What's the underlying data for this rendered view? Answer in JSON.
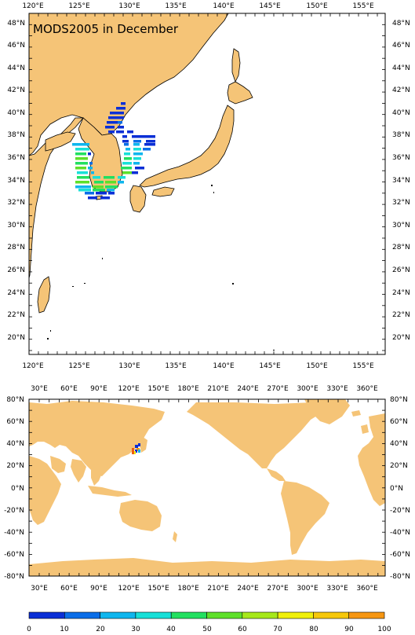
{
  "title": "MODS2005 in December",
  "regional_map": {
    "top_lon_labels": [
      "120°E",
      "125°E",
      "130°E",
      "135°E",
      "140°E",
      "145°E",
      "150°E",
      "155°E"
    ],
    "bottom_lon_labels": [
      "120°E",
      "125°E",
      "130°E",
      "135°E",
      "140°E",
      "145°E",
      "150°E",
      "155°E"
    ],
    "lat_labels": [
      "48°N",
      "46°N",
      "44°N",
      "42°N",
      "40°N",
      "38°N",
      "36°N",
      "34°N",
      "32°N",
      "30°N",
      "28°N",
      "26°N",
      "24°N",
      "22°N",
      "20°N"
    ],
    "lon_range": [
      119.5,
      157.5
    ],
    "lat_range": [
      18.5,
      49.5
    ]
  },
  "global_map": {
    "lon_labels": [
      "30°E",
      "60°E",
      "90°E",
      "120°E",
      "150°E",
      "180°E",
      "210°E",
      "240°E",
      "270°E",
      "300°E",
      "330°E",
      "360°E"
    ],
    "lat_labels": [
      "80°N",
      "60°N",
      "40°N",
      "20°N",
      "0°N",
      "-20°N",
      "-40°N",
      "-60°N",
      "-80°N"
    ],
    "lon_range": [
      20,
      378
    ],
    "lat_range": [
      -80,
      80
    ]
  },
  "colorbar": {
    "labels": [
      "0",
      "10",
      "20",
      "30",
      "40",
      "50",
      "60",
      "70",
      "80",
      "90",
      "100"
    ],
    "colors": [
      "#0a2fd6",
      "#0a6ee8",
      "#0fb6ee",
      "#18e0d8",
      "#22e060",
      "#5ee02a",
      "#a6e81a",
      "#f0f00a",
      "#f6c80a",
      "#f69612",
      "#ee5a10"
    ]
  },
  "colors": {
    "land": "#f5c477",
    "coast": "#000000",
    "ocean": "#ffffff"
  }
}
